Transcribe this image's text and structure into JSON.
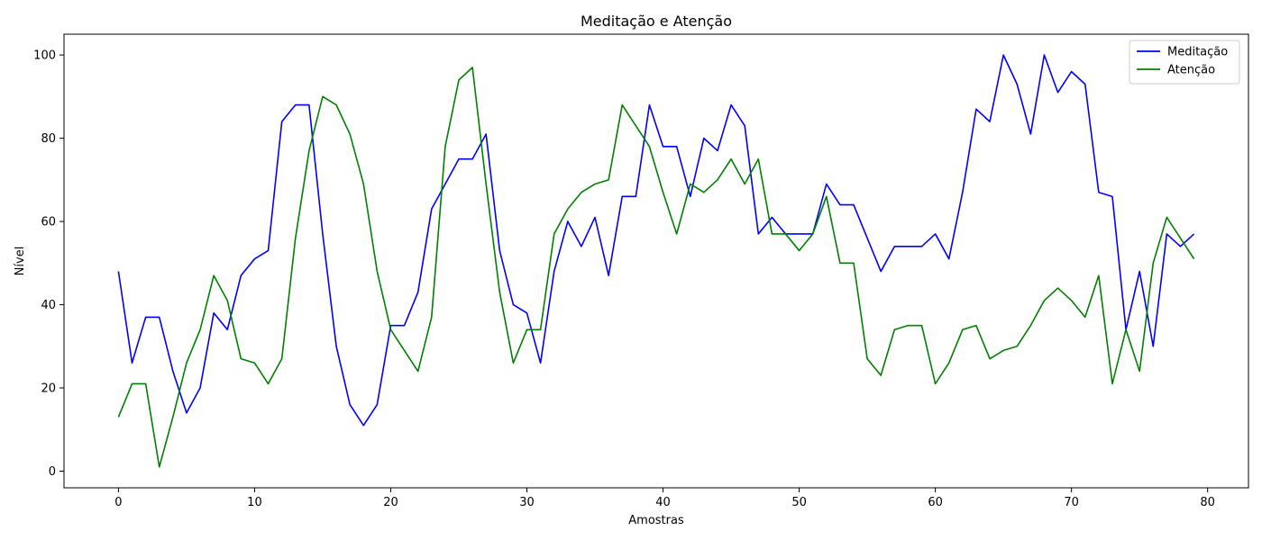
{
  "chart_data": {
    "type": "line",
    "title": "Meditação e Atenção",
    "xlabel": "Amostras",
    "ylabel": "Nível",
    "xlim": [
      -4,
      83
    ],
    "ylim": [
      -4,
      105
    ],
    "xticks": [
      0,
      10,
      20,
      30,
      40,
      50,
      60,
      70,
      80
    ],
    "yticks": [
      0,
      20,
      40,
      60,
      80,
      100
    ],
    "grid": false,
    "legend_position": "top-right",
    "x": [
      0,
      1,
      2,
      3,
      4,
      5,
      6,
      7,
      8,
      9,
      10,
      11,
      12,
      13,
      14,
      15,
      16,
      17,
      18,
      19,
      20,
      21,
      22,
      23,
      24,
      25,
      26,
      27,
      28,
      29,
      30,
      31,
      32,
      33,
      34,
      35,
      36,
      37,
      38,
      39,
      40,
      41,
      42,
      43,
      44,
      45,
      46,
      47,
      48,
      49,
      50,
      51,
      52,
      53,
      54,
      55,
      56,
      57,
      58,
      59,
      60,
      61,
      62,
      63,
      64,
      65,
      66,
      67,
      68,
      69,
      70,
      71,
      72,
      73,
      74,
      75,
      76,
      77,
      78,
      79
    ],
    "series": [
      {
        "name": "Meditação",
        "color": "#0000ff",
        "values": [
          48,
          26,
          37,
          37,
          24,
          14,
          20,
          38,
          34,
          47,
          51,
          53,
          84,
          88,
          88,
          57,
          30,
          16,
          11,
          16,
          35,
          35,
          43,
          63,
          69,
          75,
          75,
          81,
          53,
          40,
          38,
          26,
          48,
          60,
          54,
          61,
          47,
          66,
          66,
          88,
          78,
          78,
          66,
          80,
          77,
          88,
          83,
          57,
          61,
          57,
          57,
          57,
          69,
          64,
          64,
          56,
          48,
          54,
          54,
          54,
          57,
          51,
          67,
          87,
          84,
          100,
          93,
          81,
          100,
          91,
          96,
          93,
          67,
          66,
          34,
          48,
          30,
          57,
          54,
          57
        ]
      },
      {
        "name": "Atenção",
        "color": "#008000",
        "values": [
          13,
          21,
          21,
          1,
          13,
          26,
          34,
          47,
          41,
          27,
          26,
          21,
          27,
          56,
          77,
          90,
          88,
          81,
          69,
          48,
          34,
          29,
          24,
          37,
          78,
          94,
          97,
          69,
          43,
          26,
          34,
          34,
          57,
          63,
          67,
          69,
          70,
          88,
          83,
          78,
          67,
          57,
          69,
          67,
          70,
          75,
          69,
          75,
          57,
          57,
          53,
          57,
          66,
          50,
          50,
          27,
          23,
          34,
          35,
          35,
          21,
          26,
          34,
          35,
          27,
          29,
          30,
          35,
          41,
          44,
          41,
          37,
          47,
          21,
          34,
          24,
          50,
          61,
          56,
          51
        ]
      }
    ]
  }
}
